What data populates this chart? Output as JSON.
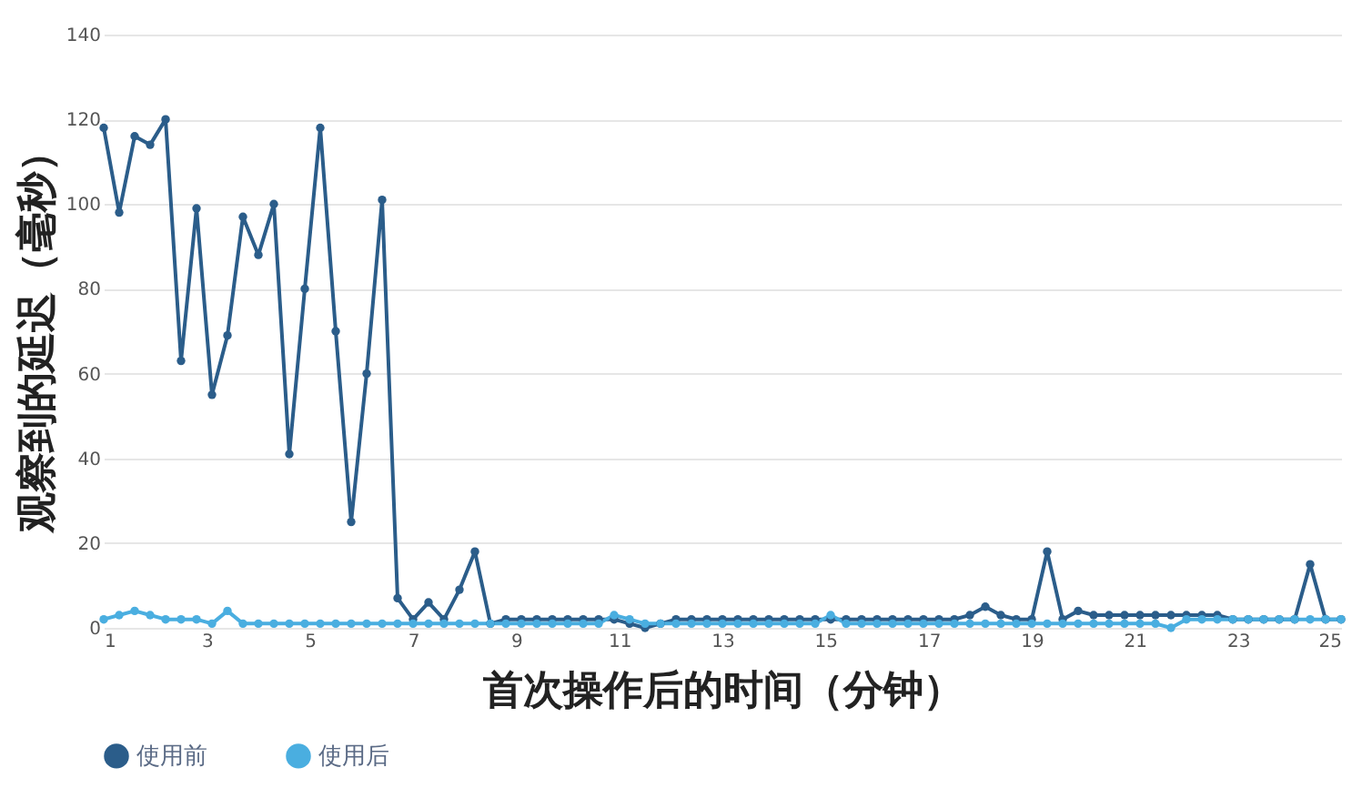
{
  "chart_data": {
    "type": "line",
    "xlabel": "首次操作后的时间（分钟）",
    "ylabel": "观察到的延迟（毫秒）",
    "x": [
      1,
      1.3,
      1.6,
      1.9,
      2.2,
      2.5,
      2.8,
      3.1,
      3.4,
      3.7,
      4,
      4.3,
      4.6,
      4.9,
      5.2,
      5.5,
      5.8,
      6.1,
      6.4,
      6.7,
      7,
      7.3,
      7.6,
      7.9,
      8.2,
      8.5,
      8.8,
      9.1,
      9.4,
      9.7,
      10,
      10.3,
      10.6,
      10.9,
      11.2,
      11.5,
      11.8,
      12.1,
      12.4,
      12.7,
      13,
      13.3,
      13.6,
      13.9,
      14.2,
      14.5,
      14.8,
      15.1,
      15.4,
      15.7,
      16,
      16.3,
      16.6,
      16.9,
      17.2,
      17.5,
      17.8,
      18.1,
      18.4,
      18.7,
      19,
      19.3,
      19.6,
      19.9,
      20.2,
      20.5,
      20.8,
      21.1,
      21.4,
      21.7,
      22,
      22.3,
      22.6,
      22.9,
      23.2,
      23.5,
      23.8,
      24.1,
      24.4,
      24.7,
      25
    ],
    "series": [
      {
        "name": "使用前",
        "color": "#2b5d8a",
        "values": [
          118,
          98,
          116,
          114,
          120,
          63,
          99,
          55,
          69,
          97,
          88,
          100,
          41,
          80,
          118,
          70,
          25,
          60,
          101,
          7,
          2,
          6,
          2,
          9,
          18,
          1,
          2,
          2,
          2,
          2,
          2,
          2,
          2,
          2,
          1,
          0,
          1,
          2,
          2,
          2,
          2,
          2,
          2,
          2,
          2,
          2,
          2,
          2,
          2,
          2,
          2,
          2,
          2,
          2,
          2,
          2,
          3,
          5,
          3,
          2,
          2,
          18,
          2,
          4,
          3,
          3,
          3,
          3,
          3,
          3,
          3,
          3,
          3,
          2,
          2,
          2,
          2,
          2,
          15,
          2,
          2
        ]
      },
      {
        "name": "使用后",
        "color": "#4aaee0",
        "values": [
          2,
          3,
          4,
          3,
          2,
          2,
          2,
          1,
          4,
          1,
          1,
          1,
          1,
          1,
          1,
          1,
          1,
          1,
          1,
          1,
          1,
          1,
          1,
          1,
          1,
          1,
          1,
          1,
          1,
          1,
          1,
          1,
          1,
          3,
          2,
          1,
          1,
          1,
          1,
          1,
          1,
          1,
          1,
          1,
          1,
          1,
          1,
          3,
          1,
          1,
          1,
          1,
          1,
          1,
          1,
          1,
          1,
          1,
          1,
          1,
          1,
          1,
          1,
          1,
          1,
          1,
          1,
          1,
          1,
          0,
          2,
          2,
          2,
          2,
          2,
          2,
          2,
          2,
          2,
          2,
          2
        ]
      }
    ],
    "xlim": [
      1,
      25
    ],
    "xticks": [
      1,
      3,
      5,
      7,
      9,
      11,
      13,
      15,
      17,
      19,
      21,
      23,
      25
    ],
    "ylim": [
      0,
      140
    ],
    "yticks": [
      0,
      20,
      40,
      60,
      80,
      100,
      120,
      140
    ],
    "grid": "y",
    "legend": "bottom",
    "marker": "circle",
    "line_style": "solid"
  }
}
